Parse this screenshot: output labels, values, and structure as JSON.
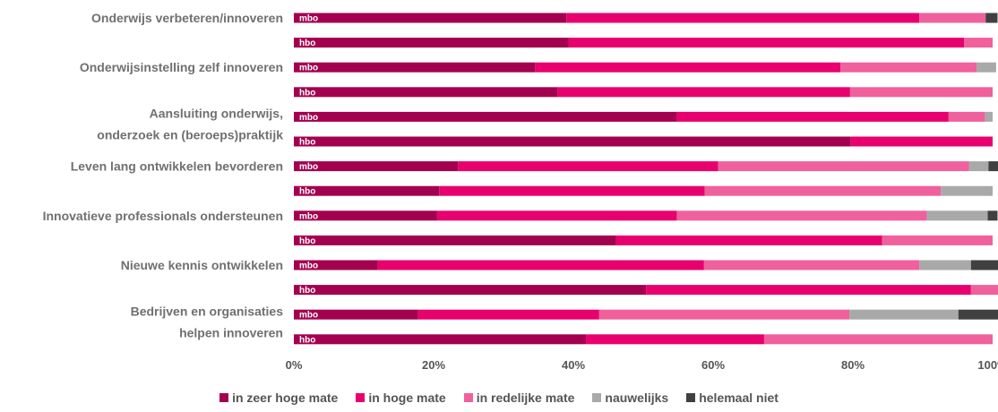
{
  "chart_data": {
    "type": "bar",
    "orientation": "horizontal",
    "stacked": "percent",
    "categories": [
      {
        "label": [
          "Onderwijs verbeteren/innoveren"
        ],
        "bars": [
          {
            "group": "mbo",
            "values": [
              39,
              50.5,
              9.5,
              0,
              1.7
            ]
          },
          {
            "group": "hbo",
            "values": [
              39.3,
              56.6,
              4.1,
              0,
              0
            ]
          }
        ]
      },
      {
        "label": [
          "Onderwijsinstelling zelf innoveren"
        ],
        "bars": [
          {
            "group": "mbo",
            "values": [
              34.5,
              43.7,
              19.5,
              2.8,
              0
            ]
          },
          {
            "group": "hbo",
            "values": [
              37.7,
              41.9,
              20.4,
              0,
              0
            ]
          }
        ]
      },
      {
        "label": [
          "Aansluiting onderwijs,",
          "onderzoek en (beroeps)praktijk"
        ],
        "bars": [
          {
            "group": "mbo",
            "values": [
              54.8,
              38.9,
              5.2,
              1.1,
              0
            ]
          },
          {
            "group": "hbo",
            "values": [
              79.7,
              20.3,
              0,
              0,
              0
            ]
          }
        ]
      },
      {
        "label": [
          "Leven lang ontwikkelen bevorderen"
        ],
        "bars": [
          {
            "group": "mbo",
            "values": [
              23.5,
              37.2,
              35.9,
              2.8,
              1.6
            ]
          },
          {
            "group": "hbo",
            "values": [
              20.8,
              38,
              33.8,
              7.4,
              0
            ]
          }
        ]
      },
      {
        "label": [
          "Innovatieve professionals ondersteunen"
        ],
        "bars": [
          {
            "group": "mbo",
            "values": [
              20.5,
              34.3,
              35.8,
              8.7,
              1.4
            ]
          },
          {
            "group": "hbo",
            "values": [
              46.1,
              38.1,
              15.8,
              0,
              0
            ]
          }
        ]
      },
      {
        "label": [
          "Nieuwe kennis ontwikkelen"
        ],
        "bars": [
          {
            "group": "mbo",
            "values": [
              12.0,
              46.7,
              30.8,
              7.4,
              4.4
            ]
          },
          {
            "group": "hbo",
            "values": [
              50.4,
              46.5,
              3.9,
              0,
              0
            ]
          }
        ]
      },
      {
        "label": [
          "Bedrijven en organisaties",
          "helpen innoveren"
        ],
        "bars": [
          {
            "group": "mbo",
            "values": [
              17.8,
              25.9,
              35.8,
              15.6,
              6.0
            ]
          },
          {
            "group": "hbo",
            "values": [
              41.8,
              25.5,
              32.7,
              0,
              0
            ]
          }
        ]
      }
    ],
    "series": [
      {
        "name": "in zeer hoge mate",
        "color": "#a3004f"
      },
      {
        "name": "in hoge mate",
        "color": "#e8006e"
      },
      {
        "name": "in redelijke mate",
        "color": "#f0609c"
      },
      {
        "name": "nauwelijks",
        "color": "#a9a9a9"
      },
      {
        "name": "helemaal niet",
        "color": "#404040"
      }
    ],
    "xticks": [
      "0%",
      "20%",
      "40%",
      "60%",
      "80%",
      "100%"
    ],
    "xlim": [
      0,
      100
    ],
    "legend_position": "bottom"
  }
}
